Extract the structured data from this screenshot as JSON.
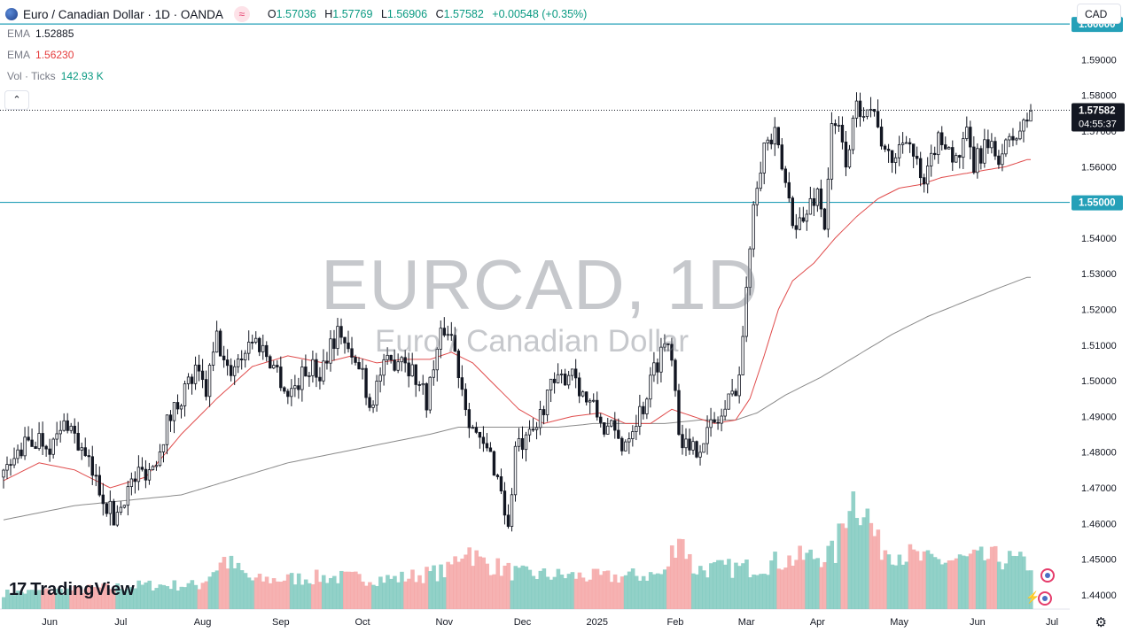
{
  "header": {
    "symbol_title": "Euro / Canadian Dollar · 1D · OANDA",
    "open_label": "O",
    "open": "1.57036",
    "high_label": "H",
    "high": "1.57769",
    "low_label": "L",
    "low": "1.56906",
    "close_label": "C",
    "close": "1.57582",
    "change": "+0.00548 (+0.35%)",
    "badge": "≈"
  },
  "indicators": [
    {
      "label": "EMA",
      "value": "1.52885",
      "color": "#131722"
    },
    {
      "label": "EMA",
      "value": "1.56230",
      "color": "#e53c3c"
    },
    {
      "label": "Vol · Ticks",
      "value": "142.93 K",
      "color": "#089981"
    }
  ],
  "collapse_button": "⌃",
  "currency_button": "CAD",
  "watermark": {
    "symbol": "EURCAD, 1D",
    "description": "Euro / Canadian Dollar"
  },
  "logo": {
    "mark": "17",
    "text": "TradingView"
  },
  "price_tags": {
    "current": "1.57582",
    "countdown": "04:55:37",
    "line_upper": "1.60000",
    "line_lower": "1.55000"
  },
  "colors": {
    "up": "#089981",
    "down": "#131722",
    "ema_fast": "#e04c4c",
    "ema_slow": "#8a8a8a",
    "vol_up": "#7fc9be",
    "vol_down": "#f5a5a5",
    "hline": "#25a0b8",
    "tag_bg": "#131722"
  },
  "chart_data": {
    "type": "candlestick",
    "y_ticks": [
      "1.60000",
      "1.59000",
      "1.58000",
      "1.57000",
      "1.56000",
      "1.55000",
      "1.54000",
      "1.53000",
      "1.52000",
      "1.51000",
      "1.50000",
      "1.49000",
      "1.48000",
      "1.47000",
      "1.46000",
      "1.45000",
      "1.44000"
    ],
    "ylim": [
      1.436,
      1.603
    ],
    "x_ticks": [
      "Jun",
      "Jul",
      "Aug",
      "Sep",
      "Oct",
      "Nov",
      "Dec",
      "2025",
      "Feb",
      "Mar",
      "Apr",
      "May",
      "Jun",
      "Jul"
    ],
    "x_tick_bars": [
      13,
      33,
      56,
      78,
      101,
      124,
      146,
      167,
      189,
      209,
      229,
      252,
      274,
      295
    ],
    "horizontal_lines": [
      1.6,
      1.55
    ],
    "last_price": 1.57582,
    "close_path": [
      [
        0,
        1.473
      ],
      [
        5,
        1.481
      ],
      [
        10,
        1.484
      ],
      [
        14,
        1.482
      ],
      [
        18,
        1.489
      ],
      [
        22,
        1.48
      ],
      [
        25,
        1.474
      ],
      [
        28,
        1.468
      ],
      [
        31,
        1.461
      ],
      [
        34,
        1.468
      ],
      [
        38,
        1.474
      ],
      [
        42,
        1.476
      ],
      [
        46,
        1.488
      ],
      [
        50,
        1.496
      ],
      [
        54,
        1.502
      ],
      [
        57,
        1.497
      ],
      [
        60,
        1.512
      ],
      [
        63,
        1.502
      ],
      [
        66,
        1.506
      ],
      [
        70,
        1.512
      ],
      [
        73,
        1.509
      ],
      [
        77,
        1.503
      ],
      [
        80,
        1.496
      ],
      [
        83,
        1.5
      ],
      [
        86,
        1.504
      ],
      [
        89,
        1.502
      ],
      [
        92,
        1.511
      ],
      [
        95,
        1.514
      ],
      [
        98,
        1.505
      ],
      [
        101,
        1.503
      ],
      [
        103,
        1.493
      ],
      [
        106,
        1.502
      ],
      [
        109,
        1.505
      ],
      [
        112,
        1.508
      ],
      [
        116,
        1.501
      ],
      [
        119,
        1.495
      ],
      [
        122,
        1.508
      ],
      [
        124,
        1.515
      ],
      [
        126,
        1.513
      ],
      [
        128,
        1.503
      ],
      [
        131,
        1.49
      ],
      [
        134,
        1.482
      ],
      [
        137,
        1.479
      ],
      [
        140,
        1.47
      ],
      [
        142,
        1.458
      ],
      [
        144,
        1.481
      ],
      [
        147,
        1.482
      ],
      [
        150,
        1.487
      ],
      [
        153,
        1.497
      ],
      [
        156,
        1.499
      ],
      [
        160,
        1.504
      ],
      [
        163,
        1.496
      ],
      [
        166,
        1.492
      ],
      [
        169,
        1.487
      ],
      [
        171,
        1.486
      ],
      [
        174,
        1.482
      ],
      [
        177,
        1.488
      ],
      [
        180,
        1.493
      ],
      [
        183,
        1.503
      ],
      [
        186,
        1.511
      ],
      [
        188,
        1.509
      ],
      [
        190,
        1.487
      ],
      [
        193,
        1.479
      ],
      [
        196,
        1.483
      ],
      [
        199,
        1.487
      ],
      [
        202,
        1.49
      ],
      [
        205,
        1.496
      ],
      [
        207,
        1.502
      ],
      [
        209,
        1.524
      ],
      [
        211,
        1.552
      ],
      [
        214,
        1.566
      ],
      [
        217,
        1.568
      ],
      [
        220,
        1.555
      ],
      [
        222,
        1.546
      ],
      [
        225,
        1.544
      ],
      [
        227,
        1.55
      ],
      [
        229,
        1.553
      ],
      [
        231,
        1.544
      ],
      [
        233,
        1.57
      ],
      [
        235,
        1.57
      ],
      [
        237,
        1.562
      ],
      [
        240,
        1.576
      ],
      [
        243,
        1.578
      ],
      [
        246,
        1.573
      ],
      [
        248,
        1.562
      ],
      [
        251,
        1.563
      ],
      [
        254,
        1.57
      ],
      [
        256,
        1.563
      ],
      [
        259,
        1.553
      ],
      [
        262,
        1.566
      ],
      [
        265,
        1.568
      ],
      [
        268,
        1.561
      ],
      [
        271,
        1.568
      ],
      [
        273,
        1.56
      ],
      [
        276,
        1.566
      ],
      [
        279,
        1.563
      ],
      [
        282,
        1.565
      ],
      [
        284,
        1.568
      ],
      [
        287,
        1.571
      ],
      [
        289,
        1.57582
      ]
    ],
    "ema_fast_path": [
      [
        0,
        1.472
      ],
      [
        10,
        1.477
      ],
      [
        20,
        1.475
      ],
      [
        30,
        1.47
      ],
      [
        40,
        1.473
      ],
      [
        50,
        1.485
      ],
      [
        60,
        1.495
      ],
      [
        70,
        1.504
      ],
      [
        80,
        1.507
      ],
      [
        90,
        1.505
      ],
      [
        98,
        1.507
      ],
      [
        105,
        1.505
      ],
      [
        112,
        1.506
      ],
      [
        120,
        1.506
      ],
      [
        126,
        1.508
      ],
      [
        132,
        1.505
      ],
      [
        138,
        1.499
      ],
      [
        145,
        1.492
      ],
      [
        152,
        1.488
      ],
      [
        160,
        1.49
      ],
      [
        168,
        1.491
      ],
      [
        175,
        1.488
      ],
      [
        182,
        1.488
      ],
      [
        188,
        1.492
      ],
      [
        194,
        1.49
      ],
      [
        200,
        1.488
      ],
      [
        206,
        1.489
      ],
      [
        210,
        1.495
      ],
      [
        214,
        1.507
      ],
      [
        218,
        1.52
      ],
      [
        222,
        1.528
      ],
      [
        228,
        1.533
      ],
      [
        234,
        1.54
      ],
      [
        240,
        1.546
      ],
      [
        246,
        1.551
      ],
      [
        252,
        1.554
      ],
      [
        258,
        1.555
      ],
      [
        264,
        1.557
      ],
      [
        270,
        1.558
      ],
      [
        276,
        1.559
      ],
      [
        282,
        1.56
      ],
      [
        288,
        1.562
      ]
    ],
    "ema_slow_path": [
      [
        0,
        1.461
      ],
      [
        10,
        1.463
      ],
      [
        20,
        1.465
      ],
      [
        30,
        1.466
      ],
      [
        40,
        1.467
      ],
      [
        50,
        1.468
      ],
      [
        60,
        1.471
      ],
      [
        70,
        1.474
      ],
      [
        80,
        1.477
      ],
      [
        90,
        1.479
      ],
      [
        100,
        1.481
      ],
      [
        110,
        1.483
      ],
      [
        120,
        1.485
      ],
      [
        128,
        1.487
      ],
      [
        136,
        1.487
      ],
      [
        146,
        1.487
      ],
      [
        156,
        1.487
      ],
      [
        166,
        1.488
      ],
      [
        176,
        1.488
      ],
      [
        186,
        1.488
      ],
      [
        196,
        1.489
      ],
      [
        206,
        1.489
      ],
      [
        212,
        1.491
      ],
      [
        220,
        1.496
      ],
      [
        230,
        1.501
      ],
      [
        240,
        1.507
      ],
      [
        250,
        1.513
      ],
      [
        260,
        1.518
      ],
      [
        270,
        1.522
      ],
      [
        280,
        1.526
      ],
      [
        288,
        1.529
      ]
    ],
    "volume_path": [
      [
        0,
        0.1
      ],
      [
        20,
        0.12
      ],
      [
        40,
        0.15
      ],
      [
        55,
        0.15
      ],
      [
        62,
        0.31
      ],
      [
        70,
        0.18
      ],
      [
        90,
        0.2
      ],
      [
        110,
        0.19
      ],
      [
        125,
        0.24
      ],
      [
        130,
        0.4
      ],
      [
        134,
        0.3
      ],
      [
        145,
        0.22
      ],
      [
        170,
        0.2
      ],
      [
        186,
        0.22
      ],
      [
        190,
        0.49
      ],
      [
        194,
        0.25
      ],
      [
        210,
        0.26
      ],
      [
        218,
        0.3
      ],
      [
        234,
        0.35
      ],
      [
        238,
        0.72
      ],
      [
        242,
        0.65
      ],
      [
        246,
        0.4
      ],
      [
        260,
        0.3
      ],
      [
        280,
        0.32
      ],
      [
        289,
        0.28
      ]
    ]
  }
}
